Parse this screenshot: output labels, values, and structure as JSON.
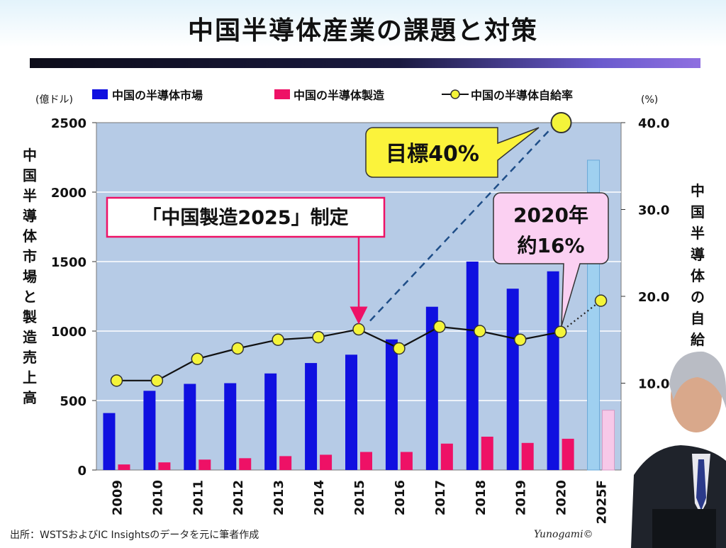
{
  "title": "中国半導体産業の課題と対策",
  "footer": "出所：WSTSおよびIC Insightsのデータを元に筆者作成",
  "credit": "Yunogami©",
  "colors": {
    "market": "#1010e0",
    "manufacturing": "#ee1166",
    "ratio_marker": "#f4f43a",
    "plot_bg": "#b6cbe6",
    "forecast_market": "#9fd0f0",
    "forecast_manufacturing": "#f7c8e8",
    "callout_yellow": "#fbf33b",
    "callout_pink": "#fbd0f2"
  },
  "chart_data": {
    "type": "bar",
    "categories": [
      "2009",
      "2010",
      "2011",
      "2012",
      "2013",
      "2014",
      "2015",
      "2016",
      "2017",
      "2018",
      "2019",
      "2020",
      "2025F"
    ],
    "series": [
      {
        "name": "中国の半導体市場",
        "axis": "left",
        "type": "bar",
        "values": [
          410,
          570,
          620,
          625,
          695,
          770,
          830,
          940,
          1175,
          1500,
          1305,
          1430,
          2230
        ]
      },
      {
        "name": "中国の半導体製造",
        "axis": "left",
        "type": "bar",
        "values": [
          40,
          55,
          75,
          85,
          100,
          110,
          130,
          130,
          190,
          240,
          195,
          225,
          430
        ]
      },
      {
        "name": "中国の半導体自給率",
        "axis": "right",
        "type": "line",
        "values": [
          10.3,
          10.3,
          12.8,
          14.0,
          15.0,
          15.3,
          16.2,
          14.0,
          16.5,
          16.0,
          15.0,
          15.9,
          19.5
        ]
      }
    ],
    "target_point": {
      "category": "2025F",
      "value": 40.0
    },
    "legend": "top",
    "left_axis": {
      "unit": "(億ドル)",
      "label": "中国半導体市場と製造売上高",
      "ylim": [
        0,
        2500
      ],
      "ticks": [
        "0",
        "500",
        "1000",
        "1500",
        "2000",
        "2500"
      ]
    },
    "right_axis": {
      "unit": "(%)",
      "label": "中国半導体の自給率",
      "ylim": [
        0,
        40
      ],
      "ticks": [
        "10.0",
        "20.0",
        "30.0",
        "40.0"
      ]
    },
    "annotations": {
      "made_in_china": "「中国製造2025」制定",
      "target": "目標40%",
      "ratio_2020_line1": "2020年",
      "ratio_2020_line2": "約16%"
    }
  }
}
